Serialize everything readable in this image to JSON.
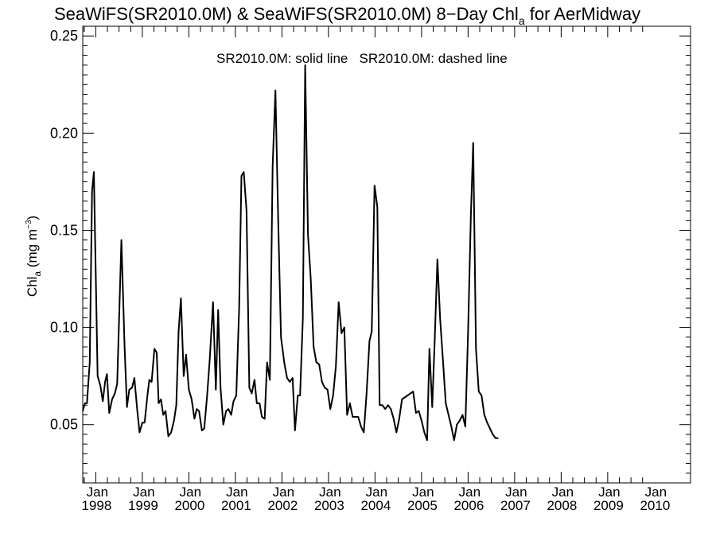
{
  "chart_data": {
    "type": "line",
    "title": "SeaWiFS(SR2010.0M) & SeaWiFS(SR2010.0M) 8−Day Chl",
    "title_subscript": "a",
    "title_suffix": " for AerMidway",
    "ylabel_main": "Chl",
    "ylabel_sub": "a",
    "ylabel_units": " (mg m",
    "ylabel_units_sup": "−3",
    "ylabel_units_end": ")",
    "annotation": "SR2010.0M: solid line   SR2010.0M: dashed line",
    "xlim": [
      1997.72,
      2010.78
    ],
    "ylim": [
      0.02,
      0.255
    ],
    "yticks": [
      0.05,
      0.1,
      0.15,
      0.2,
      0.25
    ],
    "ytick_labels": [
      "0.05",
      "0.10",
      "0.15",
      "0.20",
      "0.25"
    ],
    "month_label": "Jan",
    "years": [
      "1998",
      "1999",
      "2000",
      "2001",
      "2002",
      "2003",
      "2004",
      "2005",
      "2006",
      "2007",
      "2008",
      "2009",
      "2010"
    ],
    "grid": false,
    "series": [
      {
        "style": "solid",
        "color": "#000000",
        "points": [
          [
            1997.72,
            0.057
          ],
          [
            1997.77,
            0.061
          ],
          [
            1997.81,
            0.061
          ],
          [
            1997.87,
            0.082
          ],
          [
            1997.92,
            0.17
          ],
          [
            1997.96,
            0.18
          ],
          [
            1998.04,
            0.075
          ],
          [
            1998.1,
            0.07
          ],
          [
            1998.15,
            0.062
          ],
          [
            1998.2,
            0.072
          ],
          [
            1998.24,
            0.076
          ],
          [
            1998.29,
            0.056
          ],
          [
            1998.35,
            0.063
          ],
          [
            1998.41,
            0.066
          ],
          [
            1998.46,
            0.071
          ],
          [
            1998.55,
            0.145
          ],
          [
            1998.62,
            0.09
          ],
          [
            1998.67,
            0.059
          ],
          [
            1998.72,
            0.068
          ],
          [
            1998.78,
            0.069
          ],
          [
            1998.83,
            0.074
          ],
          [
            1998.89,
            0.058
          ],
          [
            1998.94,
            0.046
          ],
          [
            1999.0,
            0.051
          ],
          [
            1999.05,
            0.051
          ],
          [
            1999.11,
            0.065
          ],
          [
            1999.15,
            0.073
          ],
          [
            1999.2,
            0.072
          ],
          [
            1999.26,
            0.089
          ],
          [
            1999.31,
            0.087
          ],
          [
            1999.35,
            0.061
          ],
          [
            1999.4,
            0.063
          ],
          [
            1999.45,
            0.055
          ],
          [
            1999.5,
            0.057
          ],
          [
            1999.56,
            0.044
          ],
          [
            1999.62,
            0.046
          ],
          [
            1999.68,
            0.052
          ],
          [
            1999.73,
            0.06
          ],
          [
            1999.78,
            0.098
          ],
          [
            1999.83,
            0.115
          ],
          [
            1999.89,
            0.075
          ],
          [
            1999.94,
            0.086
          ],
          [
            2000.0,
            0.068
          ],
          [
            2000.06,
            0.063
          ],
          [
            2000.12,
            0.053
          ],
          [
            2000.17,
            0.058
          ],
          [
            2000.22,
            0.057
          ],
          [
            2000.28,
            0.047
          ],
          [
            2000.33,
            0.048
          ],
          [
            2000.39,
            0.064
          ],
          [
            2000.45,
            0.084
          ],
          [
            2000.52,
            0.113
          ],
          [
            2000.58,
            0.068
          ],
          [
            2000.63,
            0.109
          ],
          [
            2000.68,
            0.069
          ],
          [
            2000.74,
            0.05
          ],
          [
            2000.8,
            0.057
          ],
          [
            2000.85,
            0.058
          ],
          [
            2000.91,
            0.055
          ],
          [
            2000.96,
            0.062
          ],
          [
            2001.02,
            0.065
          ],
          [
            2001.08,
            0.11
          ],
          [
            2001.13,
            0.178
          ],
          [
            2001.18,
            0.18
          ],
          [
            2001.24,
            0.16
          ],
          [
            2001.3,
            0.069
          ],
          [
            2001.35,
            0.066
          ],
          [
            2001.41,
            0.073
          ],
          [
            2001.46,
            0.061
          ],
          [
            2001.52,
            0.061
          ],
          [
            2001.57,
            0.054
          ],
          [
            2001.63,
            0.053
          ],
          [
            2001.68,
            0.082
          ],
          [
            2001.74,
            0.073
          ],
          [
            2001.8,
            0.183
          ],
          [
            2001.86,
            0.222
          ],
          [
            2001.92,
            0.155
          ],
          [
            2001.98,
            0.095
          ],
          [
            2002.05,
            0.082
          ],
          [
            2002.11,
            0.074
          ],
          [
            2002.17,
            0.072
          ],
          [
            2002.23,
            0.074
          ],
          [
            2002.28,
            0.047
          ],
          [
            2002.34,
            0.065
          ],
          [
            2002.39,
            0.065
          ],
          [
            2002.45,
            0.105
          ],
          [
            2002.5,
            0.235
          ],
          [
            2002.56,
            0.148
          ],
          [
            2002.62,
            0.125
          ],
          [
            2002.68,
            0.09
          ],
          [
            2002.74,
            0.082
          ],
          [
            2002.8,
            0.081
          ],
          [
            2002.86,
            0.072
          ],
          [
            2002.92,
            0.069
          ],
          [
            2002.98,
            0.068
          ],
          [
            2003.04,
            0.058
          ],
          [
            2003.1,
            0.065
          ],
          [
            2003.16,
            0.08
          ],
          [
            2003.22,
            0.113
          ],
          [
            2003.28,
            0.097
          ],
          [
            2003.34,
            0.1
          ],
          [
            2003.4,
            0.055
          ],
          [
            2003.46,
            0.061
          ],
          [
            2003.52,
            0.054
          ],
          [
            2003.58,
            0.054
          ],
          [
            2003.64,
            0.054
          ],
          [
            2003.7,
            0.049
          ],
          [
            2003.76,
            0.046
          ],
          [
            2003.82,
            0.066
          ],
          [
            2003.88,
            0.093
          ],
          [
            2003.93,
            0.098
          ],
          [
            2003.99,
            0.173
          ],
          [
            2004.05,
            0.162
          ],
          [
            2004.1,
            0.06
          ],
          [
            2004.16,
            0.06
          ],
          [
            2004.22,
            0.058
          ],
          [
            2004.28,
            0.06
          ],
          [
            2004.34,
            0.058
          ],
          [
            2004.4,
            0.053
          ],
          [
            2004.46,
            0.046
          ],
          [
            2004.52,
            0.053
          ],
          [
            2004.58,
            0.063
          ],
          [
            2004.64,
            0.064
          ],
          [
            2004.7,
            0.065
          ],
          [
            2004.76,
            0.066
          ],
          [
            2004.82,
            0.067
          ],
          [
            2004.88,
            0.056
          ],
          [
            2004.94,
            0.057
          ],
          [
            2005.0,
            0.052
          ],
          [
            2005.06,
            0.046
          ],
          [
            2005.12,
            0.042
          ],
          [
            2005.17,
            0.089
          ],
          [
            2005.23,
            0.059
          ],
          [
            2005.28,
            0.092
          ],
          [
            2005.34,
            0.135
          ],
          [
            2005.4,
            0.104
          ],
          [
            2005.46,
            0.083
          ],
          [
            2005.52,
            0.061
          ],
          [
            2005.58,
            0.055
          ],
          [
            2005.64,
            0.049
          ],
          [
            2005.7,
            0.042
          ],
          [
            2005.76,
            0.05
          ],
          [
            2005.82,
            0.052
          ],
          [
            2005.88,
            0.055
          ],
          [
            2005.94,
            0.049
          ],
          [
            2006.0,
            0.098
          ],
          [
            2006.06,
            0.158
          ],
          [
            2006.11,
            0.195
          ],
          [
            2006.17,
            0.089
          ],
          [
            2006.23,
            0.067
          ],
          [
            2006.29,
            0.065
          ],
          [
            2006.35,
            0.055
          ],
          [
            2006.41,
            0.051
          ],
          [
            2006.47,
            0.048
          ],
          [
            2006.53,
            0.045
          ],
          [
            2006.59,
            0.043
          ],
          [
            2006.65,
            0.043
          ]
        ]
      }
    ]
  }
}
